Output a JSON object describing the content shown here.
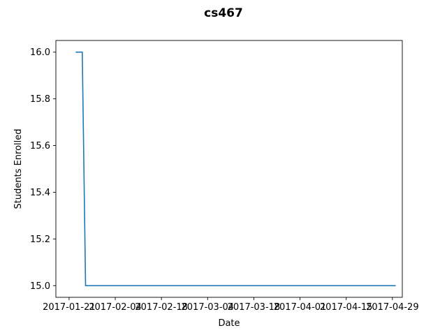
{
  "chart_data": {
    "type": "line",
    "title": "cs467",
    "xlabel": "Date",
    "ylabel": "Students Enrolled",
    "x_ticks": [
      "2017-01-21",
      "2017-02-04",
      "2017-02-18",
      "2017-03-04",
      "2017-03-18",
      "2017-04-01",
      "2017-04-15",
      "2017-04-29"
    ],
    "y_ticks": [
      "15.0",
      "15.2",
      "15.4",
      "15.6",
      "15.8",
      "16.0"
    ],
    "xlim": [
      "2017-01-17",
      "2017-05-02"
    ],
    "ylim": [
      14.95,
      16.05
    ],
    "grid": false,
    "legend": "none",
    "series": [
      {
        "color": "#1f77b4",
        "points": [
          {
            "x": "2017-01-23",
            "y": 16
          },
          {
            "x": "2017-01-25",
            "y": 16
          },
          {
            "x": "2017-01-26",
            "y": 15
          },
          {
            "x": "2017-04-30",
            "y": 15
          }
        ]
      }
    ]
  }
}
